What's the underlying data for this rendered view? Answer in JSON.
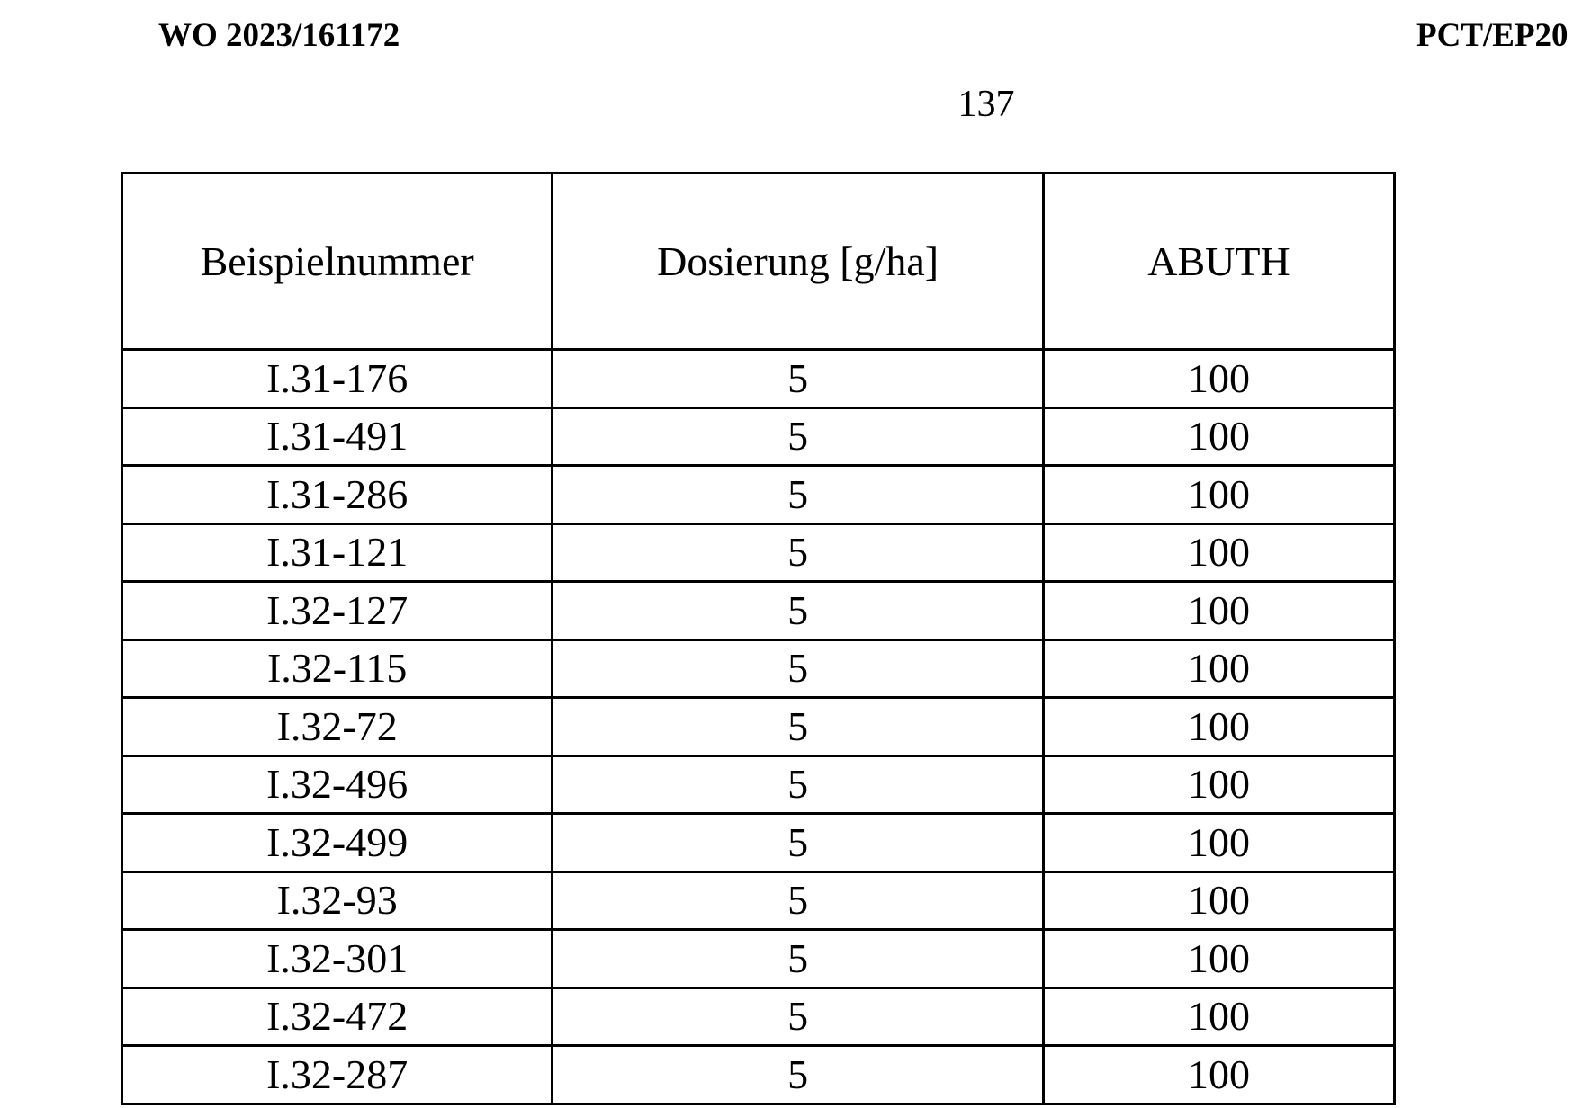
{
  "header": {
    "publication_number": "WO 2023/161172",
    "application_number": "PCT/EP20",
    "page_number": "137"
  },
  "table": {
    "columns": [
      "Beispielnummer",
      "Dosierung [g/ha]",
      "ABUTH"
    ],
    "rows": [
      [
        "I.31-176",
        "5",
        "100"
      ],
      [
        "I.31-491",
        "5",
        "100"
      ],
      [
        "I.31-286",
        "5",
        "100"
      ],
      [
        "I.31-121",
        "5",
        "100"
      ],
      [
        "I.32-127",
        "5",
        "100"
      ],
      [
        "I.32-115",
        "5",
        "100"
      ],
      [
        "I.32-72",
        "5",
        "100"
      ],
      [
        "I.32-496",
        "5",
        "100"
      ],
      [
        "I.32-499",
        "5",
        "100"
      ],
      [
        "I.32-93",
        "5",
        "100"
      ],
      [
        "I.32-301",
        "5",
        "100"
      ],
      [
        "I.32-472",
        "5",
        "100"
      ],
      [
        "I.32-287",
        "5",
        "100"
      ]
    ]
  }
}
